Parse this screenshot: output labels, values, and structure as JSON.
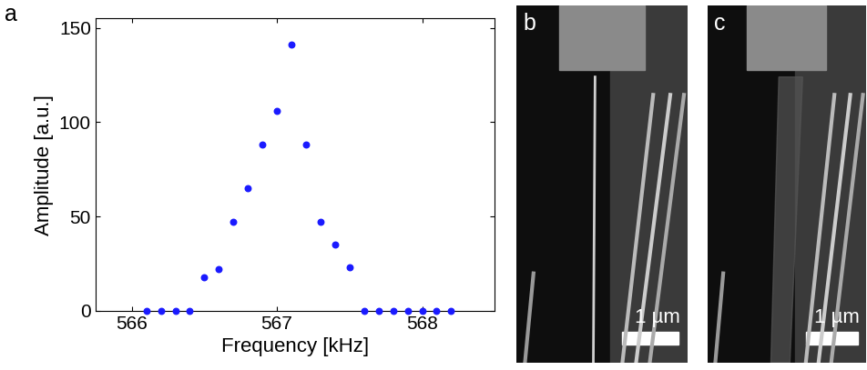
{
  "chart_data": {
    "type": "scatter",
    "annotation": "a",
    "x_label": "Frequency [kHz]",
    "y_label": "Amplitude [a.u.]",
    "x": [
      566.1,
      566.2,
      566.3,
      566.4,
      566.5,
      566.6,
      566.7,
      566.8,
      566.9,
      567.0,
      567.1,
      567.2,
      567.3,
      567.4,
      567.5,
      567.6,
      567.7,
      567.8,
      567.9,
      568.0,
      568.1,
      568.2
    ],
    "values": [
      0,
      0,
      0,
      0,
      18,
      22,
      47,
      65,
      88,
      106,
      141,
      88,
      47,
      35,
      23,
      0,
      0,
      0,
      0,
      0,
      0,
      0
    ],
    "color": "#1a1aff",
    "marker": "circle",
    "xlim": [
      565.75,
      568.5
    ],
    "xticks": [
      566,
      567,
      568
    ],
    "ylim": [
      0,
      155
    ],
    "yticks": [
      0,
      50,
      100,
      150
    ],
    "grid": false
  },
  "images": [
    {
      "label": "b",
      "scale_bar": "1 µm"
    },
    {
      "label": "c",
      "scale_bar": "1 µm"
    }
  ]
}
